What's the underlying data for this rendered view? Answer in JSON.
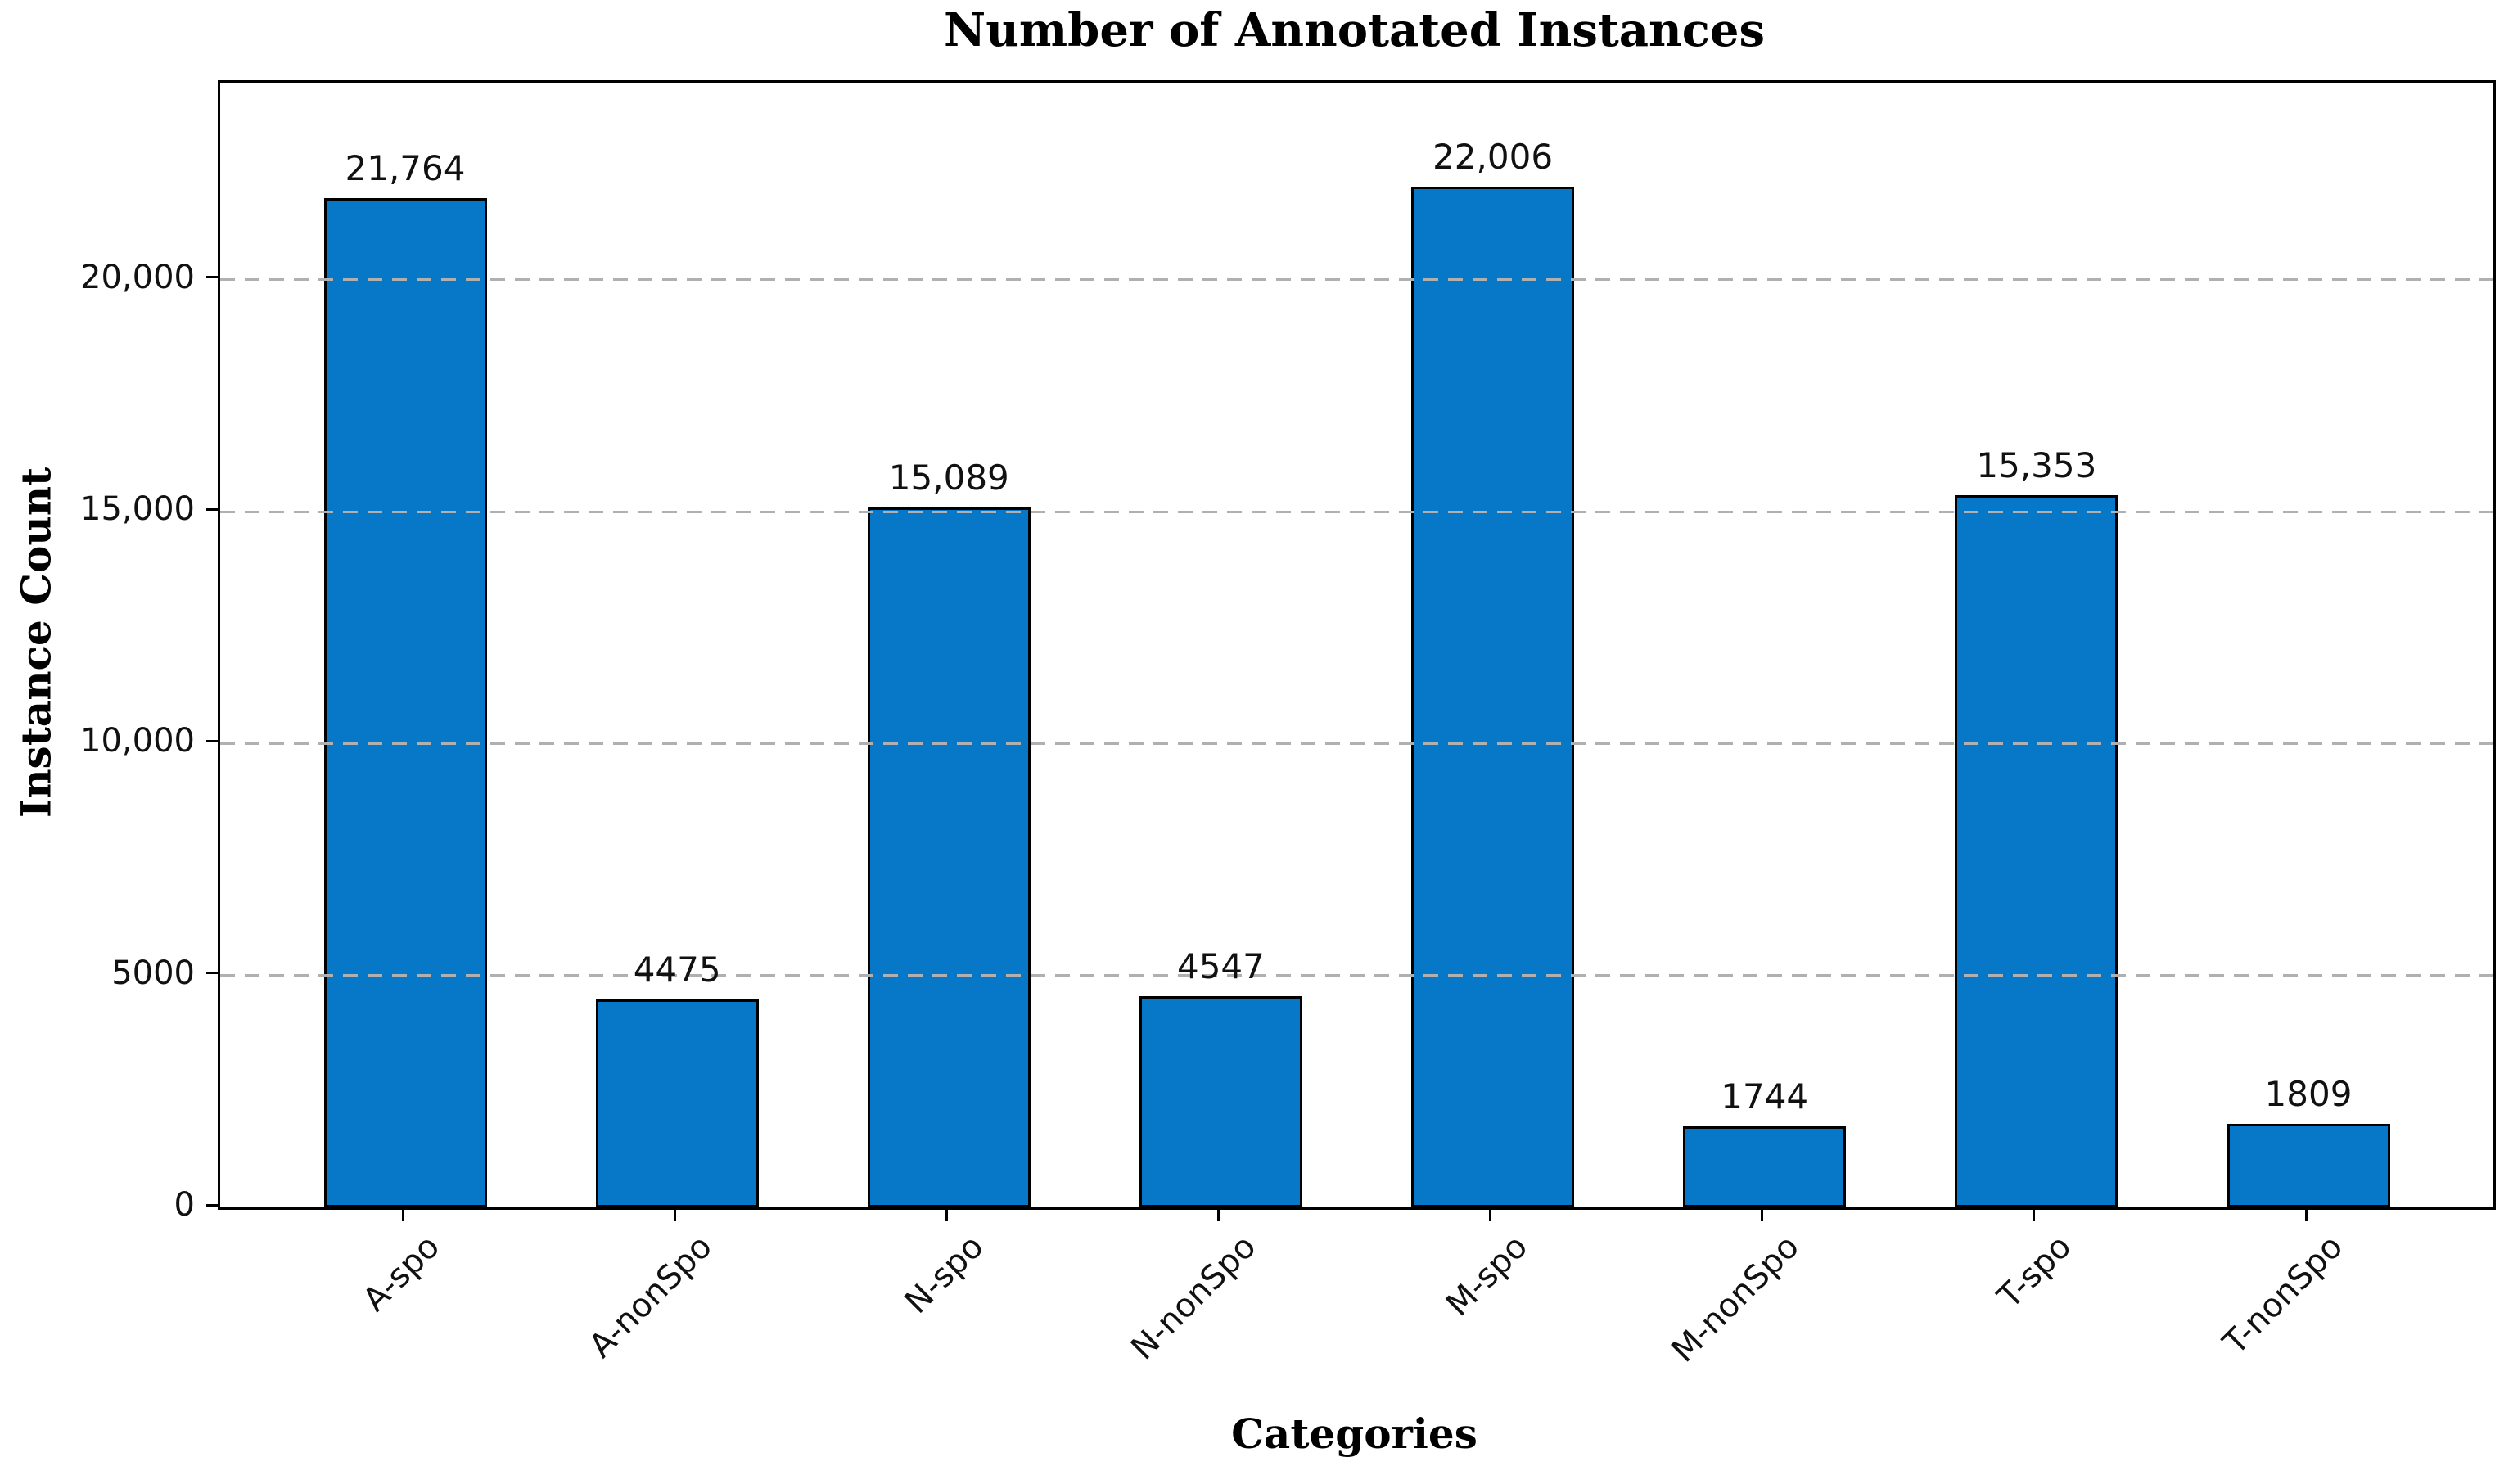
{
  "chart_data": {
    "type": "bar",
    "title": "Number of Annotated Instances",
    "xlabel": "Categories",
    "ylabel": "Instance Count",
    "categories": [
      "A-spo",
      "A-nonSpo",
      "N-spo",
      "N-nonSpo",
      "M-spo",
      "M-nonSpo",
      "T-spo",
      "T-nonSpo"
    ],
    "values": [
      21764,
      4475,
      15089,
      4547,
      22006,
      1744,
      15353,
      1809
    ],
    "value_labels": [
      "21,764",
      "4475",
      "15,089",
      "4547",
      "22,006",
      "1744",
      "15,353",
      "1809"
    ],
    "ylim": [
      0,
      24250
    ],
    "yticks": [
      {
        "value": 0,
        "label": "0"
      },
      {
        "value": 5000,
        "label": "5000"
      },
      {
        "value": 10000,
        "label": "10,000"
      },
      {
        "value": 15000,
        "label": "15,000"
      },
      {
        "value": 20000,
        "label": "20,000"
      }
    ],
    "grid": "horizontal-dashed",
    "legend": "none",
    "bar_color": "#0778c8",
    "bar_edge_color": "#000000",
    "grid_color": "#b0b0b0",
    "text_color": "#111111",
    "background": "#ffffff"
  }
}
